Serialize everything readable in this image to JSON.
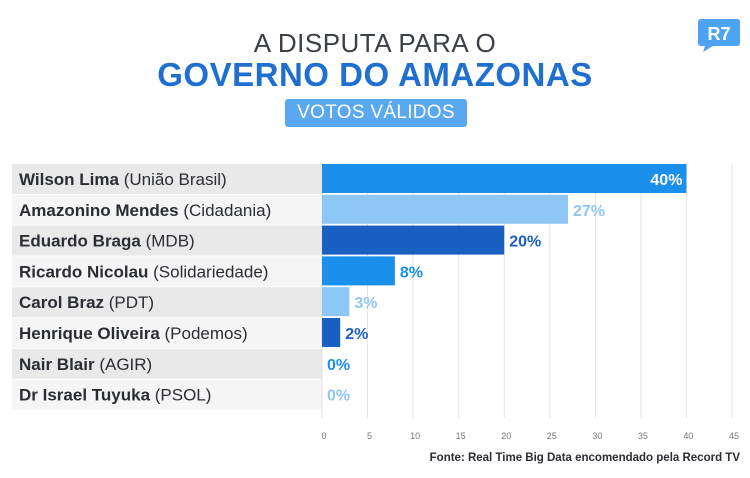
{
  "header": {
    "title_line1": "A DISPUTA PARA O",
    "title_line2": "GOVERNO DO AMAZONAS",
    "badge": "VOTOS VÁLIDOS",
    "logo_text": "R7"
  },
  "footer": {
    "source": "Fonte: Real Time Big Data encomendado pela Record TV"
  },
  "colors": {
    "title_blue": "#1f6fd1",
    "badge_blue": "#5aa9f0",
    "logo_blue": "#4ea4f4"
  },
  "chart_data": {
    "type": "bar",
    "orientation": "horizontal",
    "categories": [
      {
        "name": "Wilson Lima",
        "party": "(União Brasil)"
      },
      {
        "name": "Amazonino Mendes",
        "party": "(Cidadania)"
      },
      {
        "name": "Eduardo Braga",
        "party": "(MDB)"
      },
      {
        "name": "Ricardo Nicolau",
        "party": "(Solidariedade)"
      },
      {
        "name": "Carol Braz",
        "party": "(PDT)"
      },
      {
        "name": "Henrique Oliveira",
        "party": "(Podemos)"
      },
      {
        "name": "Nair Blair",
        "party": "(AGIR)"
      },
      {
        "name": "Dr Israel Tuyuka",
        "party": "(PSOL)"
      }
    ],
    "values": [
      40,
      27,
      20,
      8,
      3,
      2,
      0,
      0
    ],
    "labels": [
      "40%",
      "27%",
      "20%",
      "8%",
      "3%",
      "2%",
      "0%",
      "0%"
    ],
    "bar_colors": [
      "#1b8fec",
      "#8ec6f6",
      "#1a5fc2",
      "#1b8fec",
      "#8ec6f6",
      "#1a5fc2",
      "#1b8fec",
      "#8ec6f6"
    ],
    "label_colors": [
      "#ffffff",
      "#8ec6f6",
      "#1a5fc2",
      "#1b8fec",
      "#8ec6f6",
      "#1a5fc2",
      "#1b8fec",
      "#8ec6f6"
    ],
    "xlim": [
      0,
      45
    ],
    "xticks": [
      "0",
      "5",
      "10",
      "15",
      "20",
      "25",
      "30",
      "35",
      "40",
      "45"
    ],
    "grid": true,
    "xlabel": "",
    "ylabel": ""
  }
}
